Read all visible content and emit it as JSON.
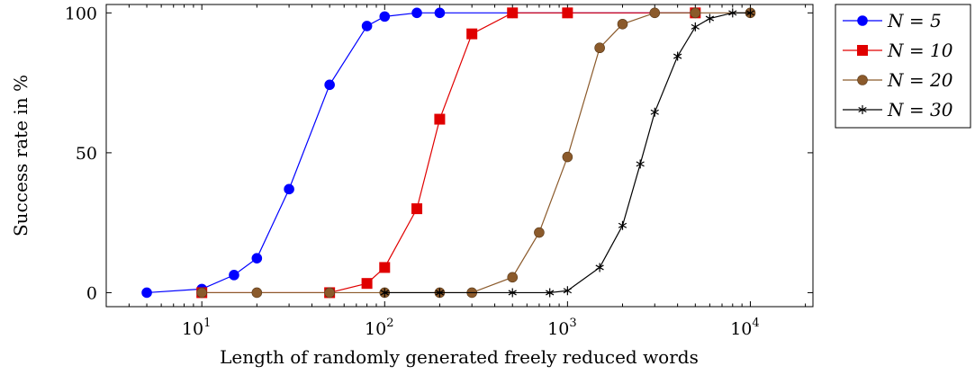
{
  "chart_data": {
    "type": "line",
    "xscale": "log",
    "xlabel": "Length of randomly generated freely reduced words",
    "ylabel": "Success rate in %",
    "xlim": [
      3,
      22000
    ],
    "ylim": [
      -5,
      103
    ],
    "x_ticks": [
      10,
      100,
      1000,
      10000
    ],
    "x_tick_labels": [
      {
        "base": "10",
        "exp": "1"
      },
      {
        "base": "10",
        "exp": "2"
      },
      {
        "base": "10",
        "exp": "3"
      },
      {
        "base": "10",
        "exp": "4"
      }
    ],
    "y_ticks": [
      0,
      50,
      100
    ],
    "y_tick_labels": [
      "0",
      "50",
      "100"
    ],
    "grid": false,
    "legend_position": "outside-right-top",
    "series": [
      {
        "name": "N = 5",
        "color": "#0000ff",
        "marker": "circle",
        "x": [
          5,
          10,
          15,
          20,
          30,
          50,
          80,
          100,
          150,
          200,
          500,
          1000,
          5000
        ],
        "y": [
          0,
          1.3,
          6.3,
          12.3,
          37,
          74.3,
          95.3,
          98.7,
          100,
          100,
          100,
          100,
          100
        ]
      },
      {
        "name": "N = 10",
        "color": "#e00000",
        "marker": "square",
        "x": [
          10,
          50,
          80,
          100,
          150,
          200,
          300,
          500,
          1000,
          5000
        ],
        "y": [
          0,
          0,
          3.3,
          9,
          30,
          62,
          92.5,
          100,
          100,
          100
        ]
      },
      {
        "name": "N = 20",
        "color": "#8b5a2b",
        "marker": "circle",
        "x": [
          10,
          20,
          50,
          100,
          200,
          300,
          500,
          700,
          1000,
          1500,
          2000,
          3000,
          5000,
          10000
        ],
        "y": [
          0,
          0,
          0,
          0,
          0,
          0,
          5.5,
          21.5,
          48.5,
          87.5,
          96,
          100,
          100,
          100
        ]
      },
      {
        "name": "N = 30",
        "color": "#000000",
        "marker": "star",
        "x": [
          100,
          200,
          500,
          800,
          1000,
          1500,
          2000,
          2500,
          3000,
          4000,
          5000,
          6000,
          8000,
          10000
        ],
        "y": [
          0,
          0,
          0,
          0,
          0.7,
          9,
          24,
          46,
          64.5,
          84.5,
          95,
          98,
          100,
          100
        ]
      }
    ]
  }
}
